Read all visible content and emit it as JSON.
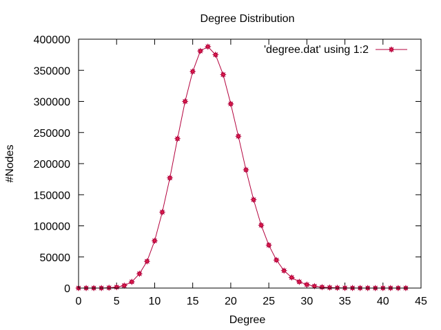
{
  "chart_data": {
    "type": "line",
    "title": "Degree Distribution",
    "xlabel": "Degree",
    "ylabel": "#Nodes",
    "xlim": [
      0,
      45
    ],
    "ylim": [
      0,
      400000
    ],
    "xticks": [
      0,
      5,
      10,
      15,
      20,
      25,
      30,
      35,
      40,
      45
    ],
    "yticks": [
      0,
      50000,
      100000,
      150000,
      200000,
      250000,
      300000,
      350000,
      400000
    ],
    "grid": false,
    "legend_position": "top-right",
    "series": [
      {
        "name": "'degree.dat' using 1:2",
        "color": "#e0204a",
        "x": [
          0,
          1,
          2,
          3,
          4,
          5,
          6,
          7,
          8,
          9,
          10,
          11,
          12,
          13,
          14,
          15,
          16,
          17,
          18,
          19,
          20,
          21,
          22,
          23,
          24,
          25,
          26,
          27,
          28,
          29,
          30,
          31,
          32,
          33,
          34,
          35,
          36,
          37,
          38,
          39,
          40,
          41,
          42,
          43
        ],
        "values": [
          0,
          0,
          0,
          0,
          500,
          1500,
          4000,
          10000,
          23000,
          43000,
          76000,
          122000,
          177000,
          240000,
          300000,
          348000,
          381000,
          388000,
          375000,
          343000,
          296000,
          244000,
          190000,
          142000,
          101000,
          69000,
          45000,
          28000,
          17000,
          10000,
          5500,
          3000,
          1500,
          800,
          400,
          200,
          100,
          50,
          20,
          10,
          5,
          2,
          1,
          0
        ]
      }
    ]
  }
}
